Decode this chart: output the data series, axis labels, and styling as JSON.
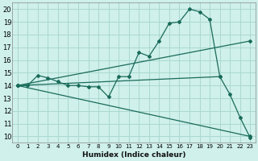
{
  "title": "",
  "xlabel": "Humidex (Indice chaleur)",
  "bg_color": "#cff0eb",
  "grid_color": "#aad8d0",
  "line_color": "#1a6b5a",
  "xlim": [
    -0.5,
    23.5
  ],
  "ylim": [
    9.5,
    20.5
  ],
  "xticks": [
    0,
    1,
    2,
    3,
    4,
    5,
    6,
    7,
    8,
    9,
    10,
    11,
    12,
    13,
    14,
    15,
    16,
    17,
    18,
    19,
    20,
    21,
    22,
    23
  ],
  "yticks": [
    10,
    11,
    12,
    13,
    14,
    15,
    16,
    17,
    18,
    19,
    20
  ],
  "line1_x": [
    0,
    1,
    2,
    3,
    4,
    5,
    6,
    7,
    8,
    9,
    10,
    11,
    12,
    13,
    14,
    15,
    16,
    17,
    18,
    19,
    20,
    21,
    22,
    23
  ],
  "line1_y": [
    14.0,
    14.0,
    14.8,
    14.6,
    14.3,
    14.0,
    14.0,
    13.9,
    13.9,
    13.1,
    14.7,
    14.7,
    16.6,
    16.3,
    17.5,
    18.9,
    19.0,
    20.0,
    19.8,
    19.2,
    14.7,
    13.3,
    11.5,
    9.9
  ],
  "line2_x": [
    0,
    20
  ],
  "line2_y": [
    14.0,
    14.7
  ],
  "line3_x": [
    0,
    23
  ],
  "line3_y": [
    14.0,
    17.5
  ],
  "line4_x": [
    0,
    23
  ],
  "line4_y": [
    14.0,
    10.0
  ],
  "xtick_fontsize": 5.0,
  "ytick_fontsize": 6.0,
  "xlabel_fontsize": 6.5
}
